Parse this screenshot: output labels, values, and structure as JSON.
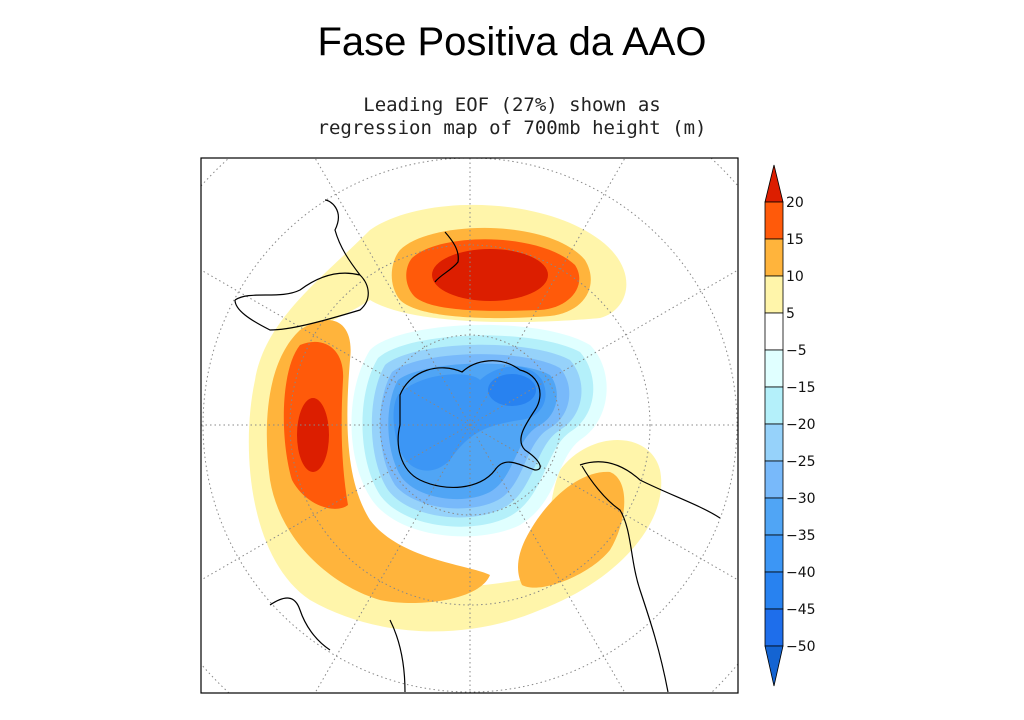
{
  "title": "Fase Positiva da AAO",
  "subtitle": [
    "Leading EOF (27%) shown as",
    "regression map of 700mb height (m)"
  ],
  "colorbar": {
    "labels": [
      "20",
      "15",
      "10",
      "5",
      "−5",
      "−15",
      "−20",
      "−25",
      "−30",
      "−35",
      "−40",
      "−45",
      "−50"
    ],
    "colors": [
      "#dc1e00",
      "#ff5a0a",
      "#ffb43c",
      "#fff5aa",
      "#ffffff",
      "#e0ffff",
      "#b4f0fa",
      "#96d2fa",
      "#78b9fa",
      "#50a5f5",
      "#3c96f5",
      "#2882f0",
      "#1e6eeb",
      "#1464d2"
    ]
  },
  "map": {
    "projection": "south polar stereographic",
    "fill_colors": {
      "red": "#dc1e00",
      "orange_red": "#ff5a0a",
      "orange": "#ffb43c",
      "yellow": "#fff5aa",
      "pale": "#e0ffff",
      "cyan": "#b4f0fa",
      "blue1": "#96d2fa",
      "blue2": "#78b9fa",
      "blue3": "#50a5f5",
      "blue4": "#3c96f5",
      "blue5": "#2882f0"
    }
  }
}
